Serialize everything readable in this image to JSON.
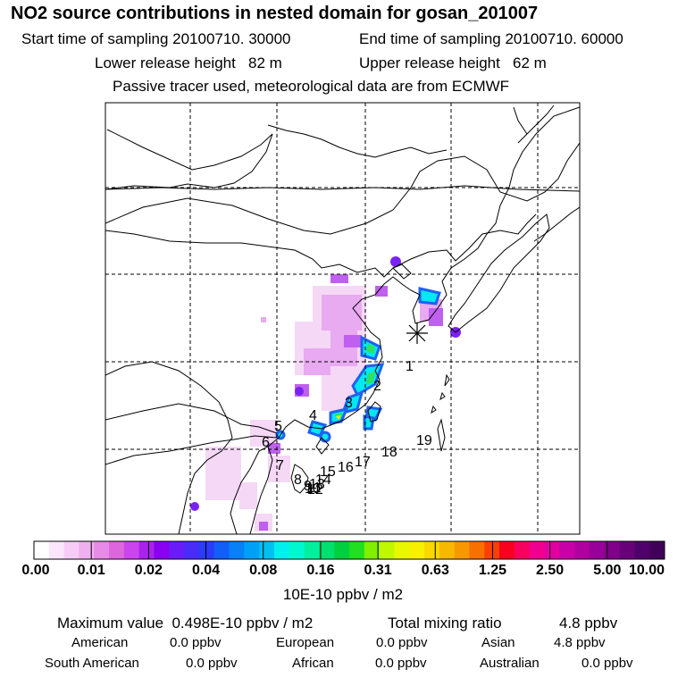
{
  "header": {
    "title": "NO2 source contributions in nested domain for gosan_201007",
    "start_label": "Start time of sampling 20100710. 30000",
    "end_label": "End time of sampling 20100710. 60000",
    "lower_label": "Lower release height   82 m",
    "upper_label": "Upper release height   62 m",
    "note": "Passive tracer used, meteorological data are from ECMWF"
  },
  "map": {
    "receptor_marker": "asterisk-icon",
    "source_labels": [
      "1",
      "2",
      "3",
      "4",
      "5",
      "6",
      "7",
      "8",
      "9",
      "10",
      "11",
      "12",
      "13",
      "14",
      "15",
      "16",
      "17",
      "18",
      "19"
    ]
  },
  "legend": {
    "ticks": [
      "0.00",
      "0.01",
      "0.02",
      "0.04",
      "0.08",
      "0.16",
      "0.31",
      "0.63",
      "1.25",
      "2.50",
      "5.00",
      "10.00"
    ],
    "unit": "10E-10 ppbv / m2",
    "colors": [
      "#ffffff",
      "#fbe6fb",
      "#f7ccf7",
      "#f0b0f0",
      "#e88ae8",
      "#dd66dd",
      "#cc44ee",
      "#aa22ee",
      "#8a00f0",
      "#6a1cf8",
      "#4a2cf8",
      "#2a3cf8",
      "#1060f8",
      "#0880f8",
      "#00a0f8",
      "#00c0f0",
      "#00f0f0",
      "#00f8d0",
      "#00f0a0",
      "#00e070",
      "#00d040",
      "#20e020",
      "#80f000",
      "#c0f800",
      "#e8f800",
      "#f8f000",
      "#f8d800",
      "#f8b800",
      "#f89800",
      "#f87000",
      "#f84000",
      "#f80020",
      "#f80060",
      "#f00090",
      "#e000a0",
      "#c800a8",
      "#b000a0",
      "#98009a",
      "#80008a",
      "#68007a",
      "#50006a",
      "#40005a"
    ]
  },
  "summary": {
    "max_label": "Maximum value  0.498E-10 ppbv / m2",
    "total_label": "Total mixing ratio",
    "total_value": "4.8 ppbv",
    "regions": [
      {
        "name": "American",
        "value": "0.0 ppbv"
      },
      {
        "name": "European",
        "value": "0.0 ppbv"
      },
      {
        "name": "Asian",
        "value": "4.8 ppbv"
      },
      {
        "name": "South American",
        "value": "0.0 ppbv"
      },
      {
        "name": "African",
        "value": "0.0 ppbv"
      },
      {
        "name": "Australian",
        "value": "0.0 ppbv"
      }
    ]
  }
}
